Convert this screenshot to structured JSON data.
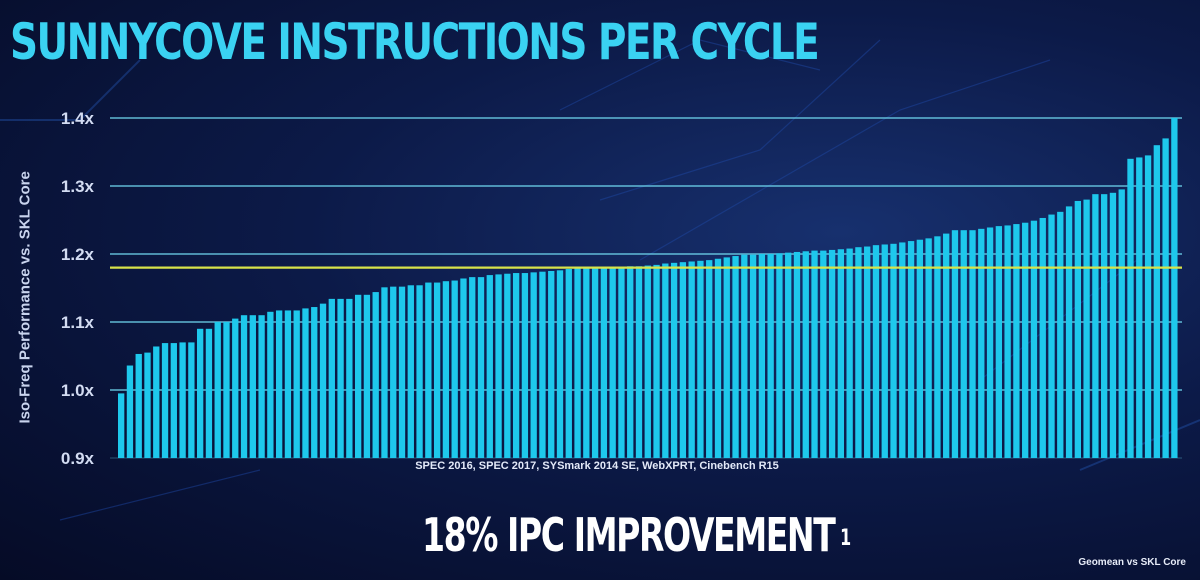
{
  "title": "SUNNYCOVE INSTRUCTIONS PER CYCLE",
  "headline": "18% IPC IMPROVEMENT",
  "headline_footnote_marker": "1",
  "source_note": "SPEC 2016, SPEC 2017, SYSmark 2014 SE, WebXPRT, Cinebench R15",
  "footnote": "Geomean vs SKL Core",
  "colors": {
    "bar": "#1ec8ec",
    "gridline": "#6fd6ee",
    "geomean_line": "#d8e34a",
    "title": "#3ad2f2"
  },
  "chart_data": {
    "type": "bar",
    "title": "SUNNYCOVE INSTRUCTIONS PER CYCLE",
    "xlabel": "",
    "ylabel": "Iso-Freq Performance vs. SKL Core",
    "ylim": [
      0.9,
      1.4
    ],
    "yticks": [
      0.9,
      1.0,
      1.1,
      1.2,
      1.3,
      1.4
    ],
    "ytick_labels": [
      "0.9x",
      "1.0x",
      "1.1x",
      "1.2x",
      "1.3x",
      "1.4x"
    ],
    "grid": true,
    "geomean": 1.18,
    "values": [
      0.995,
      1.036,
      1.053,
      1.055,
      1.064,
      1.069,
      1.069,
      1.07,
      1.07,
      1.09,
      1.09,
      1.1,
      1.1,
      1.105,
      1.11,
      1.11,
      1.11,
      1.115,
      1.117,
      1.117,
      1.117,
      1.12,
      1.122,
      1.127,
      1.134,
      1.134,
      1.134,
      1.14,
      1.14,
      1.144,
      1.151,
      1.152,
      1.152,
      1.154,
      1.154,
      1.158,
      1.158,
      1.16,
      1.161,
      1.164,
      1.166,
      1.166,
      1.169,
      1.17,
      1.171,
      1.172,
      1.172,
      1.173,
      1.174,
      1.175,
      1.176,
      1.178,
      1.179,
      1.18,
      1.18,
      1.181,
      1.181,
      1.181,
      1.182,
      1.182,
      1.183,
      1.184,
      1.186,
      1.187,
      1.188,
      1.189,
      1.19,
      1.191,
      1.193,
      1.195,
      1.197,
      1.199,
      1.199,
      1.2,
      1.2,
      1.201,
      1.202,
      1.203,
      1.204,
      1.205,
      1.205,
      1.206,
      1.207,
      1.208,
      1.21,
      1.211,
      1.213,
      1.214,
      1.215,
      1.217,
      1.219,
      1.221,
      1.223,
      1.226,
      1.23,
      1.235,
      1.235,
      1.235,
      1.237,
      1.239,
      1.241,
      1.242,
      1.244,
      1.246,
      1.249,
      1.253,
      1.258,
      1.262,
      1.27,
      1.278,
      1.28,
      1.288,
      1.288,
      1.29,
      1.295,
      1.34,
      1.342,
      1.345,
      1.36,
      1.37,
      1.4
    ]
  }
}
